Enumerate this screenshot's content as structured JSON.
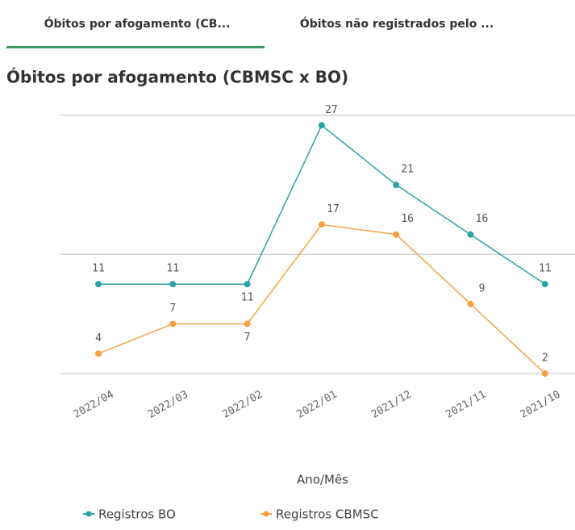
{
  "tabs": [
    "Óbitos por afogamento (CB...",
    "Óbitos não registrados pelo ..."
  ],
  "chart_data": {
    "type": "line",
    "title": "Óbitos por afogamento (CBMSC x BO)",
    "x_label": "Ano/Mês",
    "categories": [
      "2022/04",
      "2022/03",
      "2022/02",
      "2022/01",
      "2021/12",
      "2021/11",
      "2021/10"
    ],
    "series": [
      {
        "name": "Registros BO",
        "color": "#2aa2a6",
        "values": [
          11,
          11,
          11,
          27,
          21,
          16,
          11
        ]
      },
      {
        "name": "Registros CBMSC",
        "color": "#f5a143",
        "values": [
          4,
          7,
          7,
          17,
          16,
          9,
          2
        ]
      }
    ],
    "ylim": [
      2,
      28
    ],
    "yticks": [
      2,
      14,
      28
    ],
    "grid": true,
    "legend": "bottom"
  }
}
